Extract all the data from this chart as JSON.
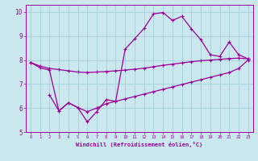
{
  "xlabel": "Windchill (Refroidissement éolien,°C)",
  "bg_color": "#cce8ef",
  "grid_color": "#aad4dd",
  "line_color": "#990099",
  "xlim": [
    -0.5,
    23.5
  ],
  "ylim": [
    5,
    10.3
  ],
  "xticks": [
    0,
    1,
    2,
    3,
    4,
    5,
    6,
    7,
    8,
    9,
    10,
    11,
    12,
    13,
    14,
    15,
    16,
    17,
    18,
    19,
    20,
    21,
    22,
    23
  ],
  "yticks": [
    5,
    6,
    7,
    8,
    9,
    10
  ],
  "line1_x": [
    0,
    1,
    2,
    3,
    4,
    5,
    6,
    7,
    8,
    9,
    10,
    11,
    12,
    13,
    14,
    15,
    16,
    17,
    18,
    19,
    20,
    21,
    22,
    23
  ],
  "line1_y": [
    7.9,
    7.75,
    7.65,
    7.6,
    7.55,
    7.5,
    7.48,
    7.5,
    7.52,
    7.55,
    7.58,
    7.62,
    7.66,
    7.72,
    7.78,
    7.83,
    7.88,
    7.93,
    7.97,
    8.0,
    8.03,
    8.06,
    8.08,
    8.05
  ],
  "line2_x": [
    2,
    3,
    4,
    5,
    6,
    7,
    8,
    9,
    10,
    11,
    12,
    13,
    14,
    15,
    16,
    17,
    18,
    19,
    20,
    21,
    22,
    23
  ],
  "line2_y": [
    6.55,
    5.88,
    6.22,
    6.02,
    5.85,
    6.0,
    6.18,
    6.28,
    6.38,
    6.48,
    6.58,
    6.68,
    6.78,
    6.88,
    6.98,
    7.08,
    7.18,
    7.28,
    7.38,
    7.48,
    7.65,
    8.0
  ],
  "line3_x": [
    0,
    1,
    2,
    3,
    4,
    5,
    6,
    7,
    8,
    9,
    10,
    11,
    12,
    13,
    14,
    15,
    16,
    17,
    18,
    19,
    20,
    21,
    22,
    23
  ],
  "line3_y": [
    7.9,
    7.68,
    7.58,
    5.88,
    6.22,
    6.02,
    5.42,
    5.85,
    6.35,
    6.28,
    8.45,
    8.88,
    9.32,
    9.92,
    9.98,
    9.65,
    9.82,
    9.3,
    8.85,
    8.22,
    8.15,
    8.75,
    8.22,
    8.05
  ]
}
